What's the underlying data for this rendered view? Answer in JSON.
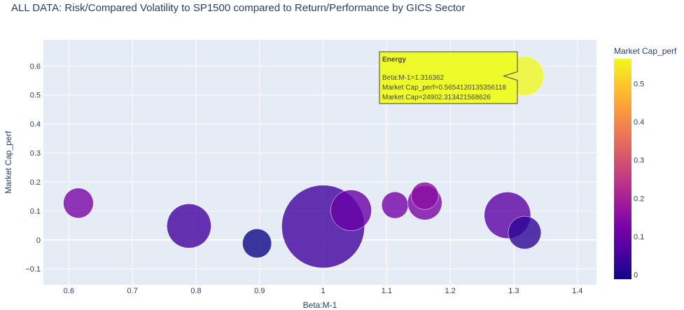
{
  "chart_data": {
    "type": "scatter",
    "title": "ALL DATA: Risk/Compared Volatility to SP1500 compared to Return/Performance by GICS Sector",
    "xlabel": "Beta:M-1",
    "ylabel": "Market Cap_perf",
    "xlim": [
      0.56,
      1.43
    ],
    "ylim": [
      -0.155,
      0.69
    ],
    "x_ticks": [
      0.6,
      0.7,
      0.8,
      0.9,
      1,
      1.1,
      1.2,
      1.3,
      1.4
    ],
    "y_ticks": [
      -0.1,
      0,
      0.1,
      0.2,
      0.3,
      0.4,
      0.5,
      0.6
    ],
    "x_tick_labels": [
      "0.6",
      "0.7",
      "0.8",
      "0.9",
      "1",
      "1.1",
      "1.2",
      "1.3",
      "1.4"
    ],
    "y_tick_labels": [
      "−0.1",
      "0",
      "0.1",
      "0.2",
      "0.3",
      "0.4",
      "0.5",
      "0.6"
    ],
    "grid": true,
    "colorbar": {
      "title": "Market Cap_perf",
      "range": [
        -0.012,
        0.565
      ],
      "ticks": [
        0,
        0.1,
        0.2,
        0.3,
        0.4,
        0.5
      ],
      "tick_labels": [
        "0",
        "0.1",
        "0.2",
        "0.3",
        "0.4",
        "0.5"
      ],
      "colors": [
        "#0d0887",
        "#46039f",
        "#7201a8",
        "#9c179e",
        "#bd3786",
        "#d8576b",
        "#ed7953",
        "#fb9f3a",
        "#fdca26",
        "#f0f921"
      ]
    },
    "points": [
      {
        "x": 0.615,
        "y": 0.127,
        "size": 460
      },
      {
        "x": 0.789,
        "y": 0.048,
        "size": 1000
      },
      {
        "x": 0.896,
        "y": -0.012,
        "size": 430
      },
      {
        "x": 1.0,
        "y": 0.046,
        "size": 3500
      },
      {
        "x": 1.044,
        "y": 0.102,
        "size": 850
      },
      {
        "x": 1.113,
        "y": 0.12,
        "size": 360
      },
      {
        "x": 1.16,
        "y": 0.128,
        "size": 600
      },
      {
        "x": 1.16,
        "y": 0.152,
        "size": 380
      },
      {
        "x": 1.29,
        "y": 0.085,
        "size": 1100
      },
      {
        "x": 1.317,
        "y": 0.025,
        "size": 550
      },
      {
        "x": 1.316362,
        "y": 0.5654120135356118,
        "size": 800
      }
    ],
    "hover": {
      "title": "Energy",
      "lines": [
        "Beta:M-1=1.316362",
        "Market Cap_perf=0.5654120135356118",
        "Market Cap=24902.313421568626"
      ]
    }
  }
}
